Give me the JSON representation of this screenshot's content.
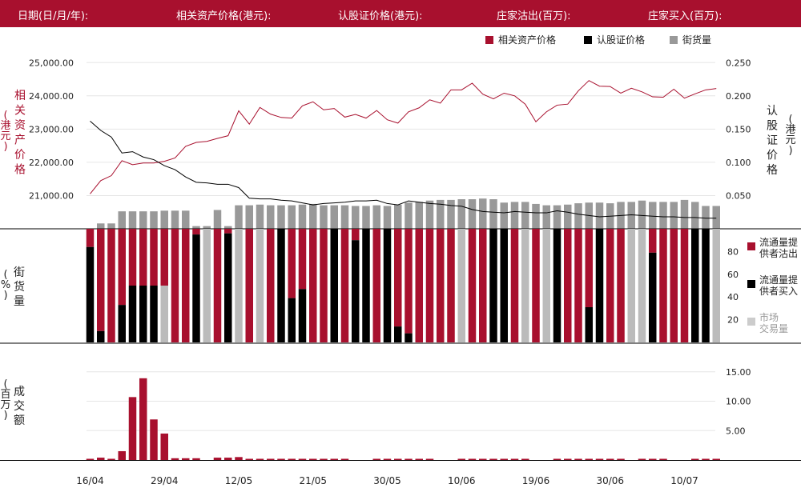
{
  "header": {
    "date_label": "日期(日/月/年):",
    "asset_label": "相关资产价格(港元):",
    "warrant_label": "认股证价格(港元):",
    "mm_sell_label": "庄家沽出(百万):",
    "mm_buy_label": "庄家买入(百万):"
  },
  "legend": {
    "asset": "相关资产价格",
    "warrant": "认股证价格",
    "outstanding": "街货量",
    "mm_sell": [
      "流通量提",
      "供者沽出"
    ],
    "mm_buy": [
      "流通量提",
      "供者买入"
    ],
    "market": [
      "市场",
      "交易量"
    ]
  },
  "axis_labels": {
    "left_top": [
      "相",
      "关",
      "资",
      "产",
      "价",
      "格"
    ],
    "left_top_unit": [
      "(",
      "港",
      "元",
      ")"
    ],
    "right_top": [
      "认",
      "股",
      "证",
      "价",
      "格"
    ],
    "right_top_unit": [
      "(",
      "港",
      "元",
      ")"
    ],
    "middle": [
      "街",
      "货",
      "量"
    ],
    "middle_unit": [
      "(",
      "%",
      ")"
    ],
    "bottom": [
      "成",
      "交",
      "额"
    ],
    "bottom_unit": [
      "(",
      "百",
      "万",
      ")"
    ]
  },
  "colors": {
    "header_bg": "#a8102e",
    "red": "#a8102e",
    "black": "#000000",
    "gray": "#999999",
    "light_gray": "#bbbbbb"
  },
  "chart_data": [
    {
      "type": "line",
      "x_tick_labels": [
        "16/04",
        "29/04",
        "12/05",
        "21/05",
        "30/05",
        "10/06",
        "19/06",
        "30/06",
        "10/07"
      ],
      "y_left": {
        "ticks": [
          "21,000.00",
          "22,000.00",
          "23,000.00",
          "24,000.00",
          "25,000.00"
        ],
        "ylim": [
          20000,
          25200
        ]
      },
      "y_right": {
        "ticks": [
          "0.050",
          "0.100",
          "0.150",
          "0.200",
          "0.250"
        ],
        "ylim": [
          0,
          0.26
        ]
      },
      "series": [
        {
          "name": "相关资产价格",
          "axis": "left",
          "color": "#a8102e",
          "values": [
            21050,
            21450,
            21600,
            22050,
            21930,
            21980,
            21980,
            22030,
            22130,
            22480,
            22600,
            22630,
            22720,
            22800,
            23550,
            23150,
            23650,
            23450,
            23350,
            23330,
            23700,
            23820,
            23580,
            23620,
            23360,
            23440,
            23330,
            23560,
            23280,
            23180,
            23520,
            23640,
            23880,
            23780,
            24180,
            24180,
            24380,
            24050,
            23910,
            24080,
            24000,
            23750,
            23220,
            23520,
            23720,
            23750,
            24150,
            24460,
            24290,
            24280,
            24080,
            24230,
            24120,
            23970,
            23960,
            24200,
            23930,
            24060,
            24180,
            24220
          ]
        },
        {
          "name": "认股证价格",
          "axis": "right",
          "color": "#000000",
          "values": [
            0.162,
            0.148,
            0.138,
            0.114,
            0.116,
            0.108,
            0.104,
            0.095,
            0.089,
            0.078,
            0.07,
            0.069,
            0.067,
            0.067,
            0.062,
            0.046,
            0.045,
            0.045,
            0.043,
            0.042,
            0.039,
            0.036,
            0.038,
            0.039,
            0.04,
            0.042,
            0.042,
            0.043,
            0.038,
            0.036,
            0.042,
            0.04,
            0.038,
            0.037,
            0.035,
            0.034,
            0.029,
            0.026,
            0.025,
            0.024,
            0.026,
            0.025,
            0.024,
            0.024,
            0.027,
            0.025,
            0.022,
            0.02,
            0.018,
            0.019,
            0.02,
            0.021,
            0.02,
            0.019,
            0.018,
            0.018,
            0.017,
            0.017,
            0.016,
            0.016
          ]
        },
        {
          "name": "街货量",
          "type": "bar",
          "axis": "outstanding",
          "color": "#999999",
          "ylim": [
            0,
            100
          ],
          "values": [
            0,
            8,
            8,
            26,
            26,
            26,
            26,
            27,
            27,
            27,
            4,
            4,
            28,
            4,
            35,
            35,
            36,
            35,
            35,
            35,
            36,
            37,
            35,
            35,
            35,
            34,
            34,
            35,
            34,
            36,
            39,
            40,
            42,
            43,
            43,
            44,
            44,
            45,
            44,
            39,
            40,
            40,
            37,
            35,
            35,
            36,
            38,
            39,
            39,
            38,
            40,
            40,
            42,
            40,
            40,
            40,
            43,
            40,
            34,
            34
          ]
        }
      ]
    },
    {
      "type": "bar",
      "stacked": true,
      "y_ticks": [
        "20",
        "40",
        "60",
        "80"
      ],
      "ylim": [
        0,
        100
      ],
      "series": [
        {
          "name": "流通量提供者沽出",
          "color": "#a8102e",
          "values": [
            16,
            90,
            100,
            67,
            50,
            50,
            50,
            50,
            100,
            100,
            5,
            0,
            100,
            4,
            0,
            100,
            0,
            100,
            0,
            61,
            53,
            100,
            100,
            0,
            100,
            10,
            0,
            100,
            0,
            86,
            92,
            100,
            100,
            100,
            100,
            0,
            100,
            100,
            0,
            0,
            100,
            0,
            100,
            0,
            0,
            100,
            100,
            69,
            0,
            100,
            100,
            0,
            0,
            21,
            100,
            100,
            100,
            0,
            0,
            0
          ]
        },
        {
          "name": "流通量提供者买入",
          "color": "#000000",
          "values": [
            84,
            10,
            0,
            33,
            50,
            50,
            50,
            0,
            0,
            0,
            95,
            0,
            0,
            96,
            0,
            0,
            0,
            0,
            100,
            39,
            47,
            0,
            0,
            100,
            0,
            90,
            100,
            0,
            100,
            14,
            8,
            0,
            0,
            0,
            0,
            0,
            0,
            0,
            100,
            100,
            0,
            0,
            0,
            0,
            100,
            0,
            0,
            31,
            100,
            0,
            0,
            0,
            0,
            79,
            0,
            0,
            0,
            100,
            100,
            0
          ]
        },
        {
          "name": "市场交易量",
          "color": "#bbbbbb",
          "values": [
            0,
            0,
            0,
            0,
            0,
            0,
            0,
            50,
            0,
            0,
            0,
            100,
            0,
            0,
            100,
            0,
            100,
            0,
            0,
            0,
            0,
            0,
            0,
            0,
            0,
            0,
            0,
            0,
            0,
            0,
            0,
            0,
            0,
            0,
            0,
            100,
            0,
            0,
            0,
            0,
            0,
            100,
            0,
            100,
            0,
            0,
            0,
            0,
            0,
            0,
            0,
            100,
            100,
            0,
            0,
            0,
            0,
            0,
            0,
            100
          ]
        }
      ]
    },
    {
      "type": "bar",
      "y_ticks": [
        "5.00",
        "10.00",
        "15.00"
      ],
      "ylim": [
        0,
        17
      ],
      "series": [
        {
          "name": "成交额",
          "color": "#a8102e",
          "values": [
            0.2,
            0.4,
            0.2,
            1.5,
            10.7,
            13.9,
            6.9,
            4.5,
            0.3,
            0.3,
            0.3,
            0,
            0.4,
            0.4,
            0.5,
            0.15,
            0.15,
            0.15,
            0.15,
            0.15,
            0.15,
            0.15,
            0.15,
            0.15,
            0.15,
            0,
            0,
            0.15,
            0.15,
            0.15,
            0.15,
            0.15,
            0.15,
            0,
            0,
            0.15,
            0.15,
            0.15,
            0.15,
            0.15,
            0.15,
            0.15,
            0,
            0,
            0.15,
            0.15,
            0.15,
            0.15,
            0.15,
            0.15,
            0.15,
            0,
            0.15,
            0.15,
            0.15,
            0,
            0,
            0.15,
            0.15,
            0.15
          ]
        }
      ]
    }
  ]
}
